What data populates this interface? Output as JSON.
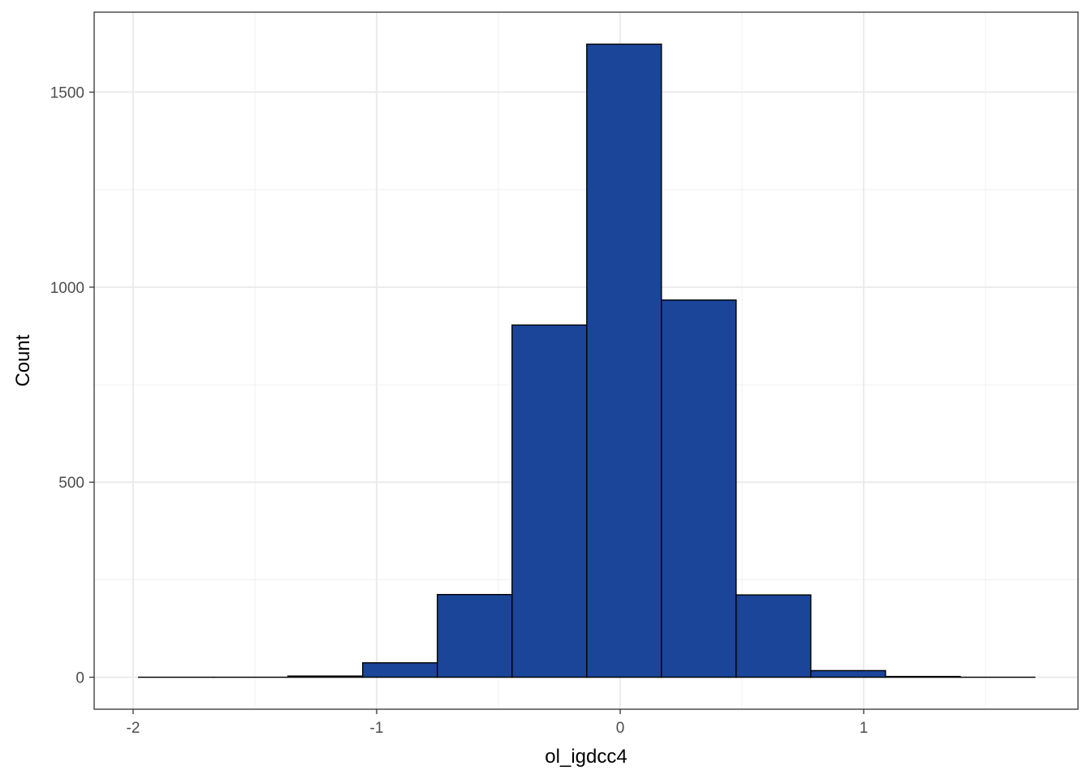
{
  "chart_data": {
    "type": "histogram",
    "xlabel": "ol_igdcc4",
    "ylabel": "Count",
    "bin_width": 0.3067,
    "bins": [
      {
        "x_start": -1.9775,
        "x_end": -1.6708,
        "count": 0
      },
      {
        "x_start": -1.6708,
        "x_end": -1.3641,
        "count": 0
      },
      {
        "x_start": -1.3641,
        "x_end": -1.0574,
        "count": 3
      },
      {
        "x_start": -1.0574,
        "x_end": -0.7507,
        "count": 37
      },
      {
        "x_start": -0.7507,
        "x_end": -0.444,
        "count": 212
      },
      {
        "x_start": -0.444,
        "x_end": -0.1373,
        "count": 903
      },
      {
        "x_start": -0.1373,
        "x_end": 0.1694,
        "count": 1623
      },
      {
        "x_start": 0.1694,
        "x_end": 0.4761,
        "count": 967
      },
      {
        "x_start": 0.4761,
        "x_end": 0.7828,
        "count": 211
      },
      {
        "x_start": 0.7828,
        "x_end": 1.0895,
        "count": 17
      },
      {
        "x_start": 1.0895,
        "x_end": 1.3962,
        "count": 2
      },
      {
        "x_start": 1.3962,
        "x_end": 1.7029,
        "count": 0
      }
    ],
    "xlim": [
      -2.16,
      1.88
    ],
    "ylim": [
      -82,
      1705
    ],
    "x_ticks": [
      -2,
      -1,
      0,
      1
    ],
    "y_ticks": [
      0,
      500,
      1000,
      1500
    ],
    "x_minor": [
      -1.5,
      -0.5,
      0.5,
      1.5
    ],
    "y_minor": [
      250,
      750,
      1250
    ],
    "grid": true,
    "fill_color": "#1A4599",
    "edge_color": "#000000",
    "theme": "bw"
  }
}
